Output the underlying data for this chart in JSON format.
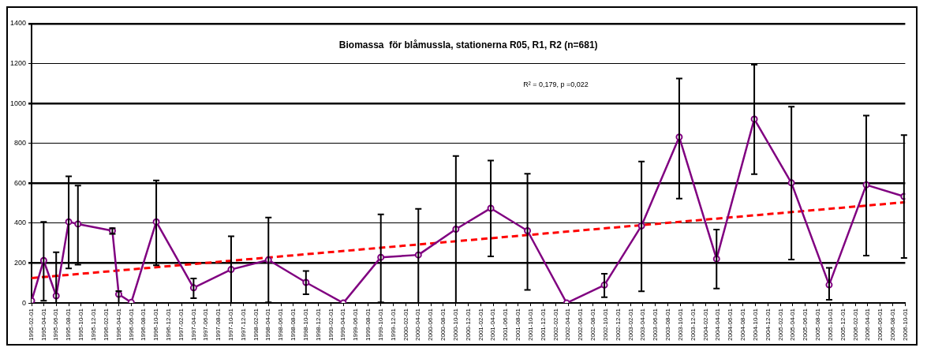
{
  "chart_data": {
    "type": "line",
    "title": "Biomassa  för blåmussla, stationerna R05, R1, R2 (n=681)",
    "annotations": [
      "R² = 0,179, p =0,022"
    ],
    "x": [
      "1995-02-01",
      "1995-04-01",
      "1995-06-01",
      "1995-08-01",
      "1995-09-15",
      "1996-03-01",
      "1996-04-01",
      "1996-06-01",
      "1996-10-01",
      "1997-04-01",
      "1997-10-01",
      "1998-04-01",
      "1998-10-01",
      "1999-04-01",
      "1999-10-01",
      "2000-04-01",
      "2000-10-01",
      "2001-03-20",
      "2001-09-15",
      "2002-03-25",
      "2002-09-25",
      "2003-03-25",
      "2003-09-25",
      "2004-03-25",
      "2004-09-25",
      "2005-03-25",
      "2005-09-25",
      "2006-03-25",
      "2006-09-25"
    ],
    "series": [
      {
        "color": "#800080",
        "marker": "circle",
        "line_style": "solid",
        "values": [
          11,
          213,
          36,
          407,
          396,
          362,
          44,
          3,
          407,
          76,
          168,
          216,
          103,
          0,
          229,
          241,
          370,
          475,
          362,
          0,
          90,
          387,
          832,
          221,
          922,
          602,
          91,
          592,
          534
        ],
        "errors": [
          null,
          [
            11,
            407
          ],
          [
            0,
            254
          ],
          [
            173,
            635
          ],
          [
            192,
            588
          ],
          [
            346,
            375
          ],
          [
            0,
            60
          ],
          null,
          [
            189,
            614
          ],
          [
            24,
            123
          ],
          [
            0,
            334
          ],
          [
            3,
            428
          ],
          [
            44,
            160
          ],
          null,
          [
            3,
            444
          ],
          [
            0,
            472
          ],
          [
            0,
            737
          ],
          [
            234,
            714
          ],
          [
            66,
            648
          ],
          null,
          [
            29,
            147
          ],
          [
            59,
            709
          ],
          [
            523,
            1125
          ],
          [
            72,
            368
          ],
          [
            646,
            1194
          ],
          [
            218,
            984
          ],
          [
            16,
            176
          ],
          [
            238,
            939
          ],
          [
            226,
            842
          ]
        ]
      },
      {
        "color": "#ff0000",
        "marker": "none",
        "line_style": "dashed",
        "x": [
          "1995-02-01",
          "2006-10-01"
        ],
        "values": [
          125,
          505
        ]
      }
    ],
    "xlim": [
      "1995-02-01",
      "2006-10-01"
    ],
    "xticks": [
      "1995-02-01",
      "1995-04-01",
      "1995-06-01",
      "1995-08-01",
      "1995-10-01",
      "1995-12-01",
      "1996-02-01",
      "1996-04-01",
      "1996-06-01",
      "1996-08-01",
      "1996-10-01",
      "1996-12-01",
      "1997-02-01",
      "1997-04-01",
      "1997-06-01",
      "1997-08-01",
      "1997-10-01",
      "1997-12-01",
      "1998-02-01",
      "1998-04-01",
      "1998-06-01",
      "1998-08-01",
      "1998-10-01",
      "1998-12-01",
      "1999-02-01",
      "1999-04-01",
      "1999-06-01",
      "1999-08-01",
      "1999-10-01",
      "1999-12-01",
      "2000-02-01",
      "2000-04-01",
      "2000-06-01",
      "2000-08-01",
      "2000-10-01",
      "2000-12-01",
      "2001-02-01",
      "2001-04-01",
      "2001-06-01",
      "2001-08-01",
      "2001-10-01",
      "2001-12-01",
      "2002-02-01",
      "2002-04-01",
      "2002-06-01",
      "2002-08-01",
      "2002-10-01",
      "2002-12-01",
      "2003-02-01",
      "2003-04-01",
      "2003-06-01",
      "2003-08-01",
      "2003-10-01",
      "2003-12-01",
      "2004-02-01",
      "2004-04-01",
      "2004-06-01",
      "2004-08-01",
      "2004-10-01",
      "2004-12-01",
      "2005-02-01",
      "2005-04-01",
      "2005-06-01",
      "2005-08-01",
      "2005-10-01",
      "2005-12-01",
      "2006-02-01",
      "2006-04-01",
      "2006-06-01",
      "2006-08-01",
      "2006-10-01"
    ],
    "ylim": [
      0,
      1400
    ],
    "yticks": [
      0,
      200,
      400,
      600,
      800,
      1000,
      1200,
      1400
    ],
    "grid": "y",
    "legend": false
  }
}
